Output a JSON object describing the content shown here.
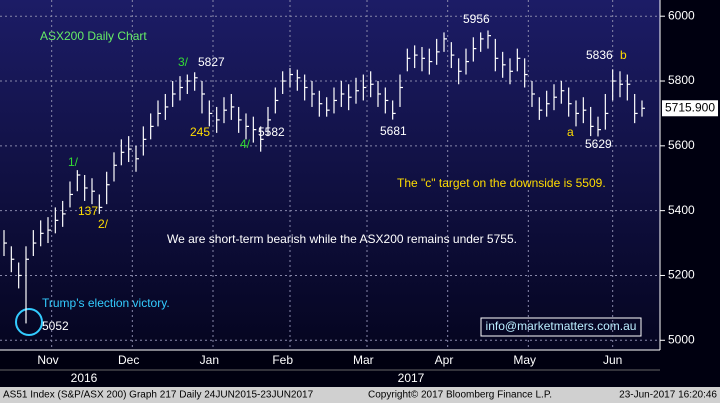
{
  "chart_data": {
    "type": "ohlc",
    "title": "ASX200 Daily Chart",
    "color": "#ffffff",
    "ylim": [
      4970,
      6050
    ],
    "yticks": [
      5000,
      5200,
      5400,
      5600,
      5800,
      6000
    ],
    "grid": true,
    "categories": [
      null,
      null,
      null,
      null,
      null,
      null,
      "Nov",
      null,
      null,
      null,
      null,
      null,
      null,
      null,
      null,
      null,
      null,
      "Dec",
      null,
      null,
      null,
      null,
      null,
      null,
      null,
      null,
      null,
      null,
      "Jan",
      null,
      null,
      null,
      null,
      null,
      null,
      null,
      null,
      null,
      "Feb",
      null,
      null,
      null,
      null,
      null,
      null,
      null,
      null,
      null,
      null,
      "Mar",
      null,
      null,
      null,
      null,
      null,
      null,
      null,
      null,
      null,
      null,
      "Apr",
      null,
      null,
      null,
      null,
      null,
      null,
      null,
      null,
      null,
      null,
      "May",
      null,
      null,
      null,
      null,
      null,
      null,
      null,
      null,
      null,
      null,
      null,
      "Jun",
      null,
      null,
      null,
      null
    ],
    "years": [
      "2016",
      "2017"
    ],
    "series": [
      {
        "name": "high",
        "values": [
          5340,
          5290,
          5240,
          5290,
          5340,
          5370,
          5380,
          5410,
          5430,
          5490,
          5525,
          5510,
          5500,
          5450,
          5520,
          5580,
          5620,
          5630,
          5600,
          5660,
          5700,
          5740,
          5760,
          5800,
          5815,
          5820,
          5827,
          5800,
          5740,
          5720,
          5750,
          5760,
          5720,
          5700,
          5690,
          5660,
          5720,
          5780,
          5830,
          5840,
          5835,
          5820,
          5800,
          5770,
          5750,
          5780,
          5800,
          5790,
          5810,
          5820,
          5830,
          5800,
          5780,
          5740,
          5820,
          5900,
          5910,
          5905,
          5900,
          5930,
          5950,
          5920,
          5870,
          5900,
          5935,
          5950,
          5956,
          5930,
          5890,
          5870,
          5900,
          5870,
          5800,
          5750,
          5770,
          5790,
          5800,
          5780,
          5740,
          5750,
          5720,
          5690,
          5760,
          5836,
          5830,
          5820,
          5760,
          5740
        ]
      },
      {
        "name": "low",
        "values": [
          5260,
          5210,
          5160,
          5052,
          5260,
          5290,
          5300,
          5330,
          5350,
          5410,
          5460,
          5430,
          5420,
          5390,
          5420,
          5490,
          5540,
          5550,
          5520,
          5570,
          5620,
          5660,
          5680,
          5720,
          5740,
          5760,
          5770,
          5700,
          5660,
          5640,
          5670,
          5680,
          5640,
          5620,
          5610,
          5582,
          5630,
          5700,
          5760,
          5780,
          5770,
          5740,
          5720,
          5690,
          5690,
          5700,
          5720,
          5710,
          5730,
          5740,
          5750,
          5720,
          5700,
          5681,
          5720,
          5830,
          5840,
          5830,
          5820,
          5850,
          5890,
          5840,
          5790,
          5820,
          5860,
          5890,
          5900,
          5830,
          5810,
          5790,
          5830,
          5780,
          5720,
          5680,
          5690,
          5710,
          5730,
          5690,
          5660,
          5670,
          5630,
          5629,
          5650,
          5740,
          5750,
          5740,
          5670,
          5690
        ]
      },
      {
        "name": "close",
        "values": [
          5300,
          5250,
          5200,
          5250,
          5300,
          5330,
          5340,
          5370,
          5390,
          5450,
          5510,
          5470,
          5460,
          5410,
          5480,
          5540,
          5580,
          5590,
          5560,
          5620,
          5660,
          5700,
          5720,
          5760,
          5780,
          5800,
          5810,
          5760,
          5700,
          5680,
          5710,
          5720,
          5680,
          5660,
          5650,
          5620,
          5680,
          5740,
          5800,
          5820,
          5810,
          5780,
          5760,
          5730,
          5710,
          5740,
          5760,
          5750,
          5770,
          5780,
          5790,
          5760,
          5740,
          5700,
          5780,
          5870,
          5880,
          5870,
          5860,
          5890,
          5930,
          5880,
          5830,
          5860,
          5900,
          5930,
          5940,
          5870,
          5850,
          5830,
          5870,
          5820,
          5760,
          5710,
          5730,
          5750,
          5770,
          5730,
          5700,
          5710,
          5660,
          5650,
          5700,
          5800,
          5790,
          5790,
          5700,
          5715.9
        ]
      }
    ],
    "last_price": {
      "value": 5715.9,
      "label": "5715.900"
    },
    "annotations": [
      {
        "text": "3/",
        "color": "#33dd33"
      },
      {
        "text": "5827",
        "color": "#ffffff"
      },
      {
        "text": "245",
        "color": "#ffdd00"
      },
      {
        "text": "4/",
        "color": "#33dd33"
      },
      {
        "text": "5582",
        "color": "#ffffff"
      },
      {
        "text": "1/",
        "color": "#33dd33"
      },
      {
        "text": "137",
        "color": "#ffdd00"
      },
      {
        "text": "2/",
        "color": "#ffdd00"
      },
      {
        "text": "5052",
        "color": "#ffffff"
      },
      {
        "text": "Trump's election victory.",
        "color": "#33ccff"
      },
      {
        "text": "5681",
        "color": "#ffffff"
      },
      {
        "text": "5956",
        "color": "#ffffff"
      },
      {
        "text": "5836",
        "color": "#ffffff"
      },
      {
        "text": "b",
        "color": "#ffdd00"
      },
      {
        "text": "a",
        "color": "#ffdd00"
      },
      {
        "text": "5629",
        "color": "#ffffff"
      },
      {
        "text": "The \"c\" target on the downside is 5509.",
        "color": "#ffdd00"
      },
      {
        "text": "We are short-term bearish while the ASX200 remains under 5755.",
        "color": "#ffffff"
      }
    ],
    "info": "info@marketmatters.com.au",
    "footer": [
      "AS51 Index (S&P/ASX 200) Graph 217  Daily 24JUN2015-23JUN2017",
      "Copyright© 2017 Bloomberg Finance L.P.",
      "23-Jun-2017 16:20:46"
    ]
  }
}
